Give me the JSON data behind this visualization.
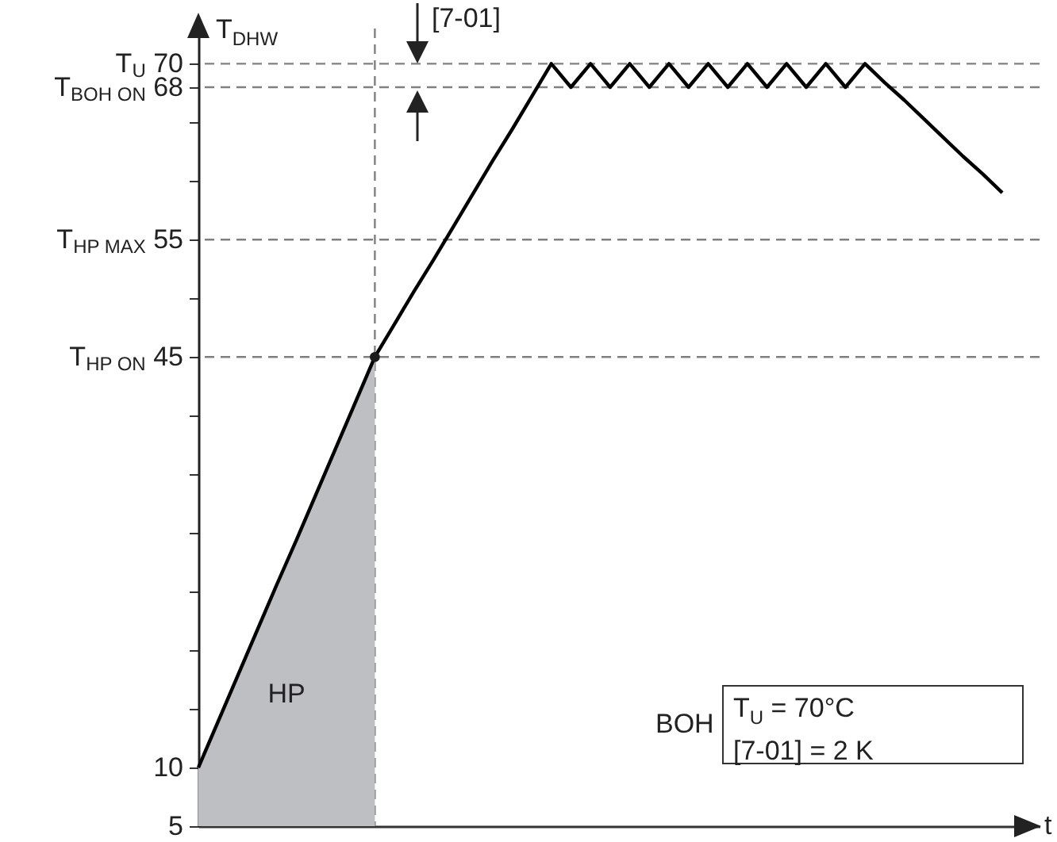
{
  "chart_data": {
    "type": "line",
    "ylabel": "T$_{DHW}$",
    "xlabel": "t",
    "categories": [
      null,
      null,
      null,
      null,
      null,
      null,
      null,
      null,
      null,
      null,
      null,
      null,
      null,
      null,
      null,
      null,
      null,
      null,
      null,
      null,
      null,
      null,
      null,
      null,
      null,
      null,
      null,
      null,
      null,
      null,
      null,
      null,
      null,
      null,
      null,
      null,
      null,
      null,
      null,
      null,
      null,
      null
    ],
    "series": [
      {
        "type": "area",
        "name": "HP",
        "color": "#bebfc3",
        "values": [
          10,
          13.9,
          17.8,
          21.7,
          25.6,
          29.4,
          33.3,
          37.2,
          41.1,
          45,
          null,
          null,
          null,
          null,
          null,
          null,
          null,
          null,
          null,
          null,
          null,
          null,
          null,
          null,
          null,
          null,
          null,
          null,
          null,
          null,
          null,
          null,
          null,
          null,
          null,
          null,
          null,
          null,
          null,
          null,
          null,
          null
        ]
      },
      {
        "color": "#000000",
        "values": [
          10,
          13.9,
          17.8,
          21.7,
          25.6,
          29.4,
          33.3,
          37.2,
          41.1,
          45,
          47.8,
          50.6,
          53.3,
          56.1,
          58.9,
          61.7,
          64.4,
          67.2,
          70,
          68,
          70,
          68,
          70,
          68,
          70,
          68,
          70,
          68,
          70,
          68,
          70,
          68,
          70,
          68,
          70,
          68.4,
          66.9,
          65.3,
          63.7,
          62.1,
          60.6,
          59
        ]
      },
      {
        "type": "scatter",
        "color": "#1a1a1a",
        "values": [
          null,
          null,
          null,
          null,
          null,
          null,
          null,
          null,
          null,
          45,
          null,
          null,
          null,
          null,
          null,
          null,
          null,
          null,
          null,
          null,
          null,
          null,
          null,
          null,
          null,
          null,
          null,
          null,
          null,
          null,
          null,
          null,
          null,
          null,
          null,
          null,
          null,
          null,
          null,
          null,
          null,
          null
        ]
      }
    ],
    "ylim": [
      5,
      73
    ],
    "yticks": [
      5,
      10,
      {
        "value": 15,
        "label": null
      },
      {
        "value": 20,
        "label": null
      },
      {
        "value": 25,
        "label": null
      },
      {
        "value": 30,
        "label": null
      },
      {
        "value": 35,
        "label": null
      },
      {
        "value": 40,
        "label": null
      },
      {
        "value": 45,
        "label": "T$_{HP ON}$ 45"
      },
      {
        "value": 50,
        "label": null
      },
      {
        "value": 55,
        "label": "T$_{HP MAX}$ 55"
      },
      {
        "value": 60,
        "label": null
      },
      {
        "value": 65,
        "label": null
      },
      {
        "value": 68,
        "label": "T$_{BOH ON}$ 68"
      },
      {
        "value": 70,
        "label": "T$_{U}$ 70"
      }
    ],
    "tick_labels": "y",
    "ref_lines": [
      {
        "axis": "y",
        "value": 70,
        "color": "#808080",
        "line_style": "dashed"
      },
      {
        "axis": "y",
        "value": 68,
        "color": "#808080",
        "line_style": "dashed"
      },
      {
        "axis": "y",
        "value": 55,
        "color": "#808080",
        "line_style": "dashed"
      },
      {
        "axis": "y",
        "value": 45,
        "color": "#808080",
        "line_style": "dashed"
      }
    ],
    "annotations": [
      "[7-01]",
      "BOH",
      "T$_{U}$ = 70°C",
      "[7-01] = 2 K"
    ]
  }
}
